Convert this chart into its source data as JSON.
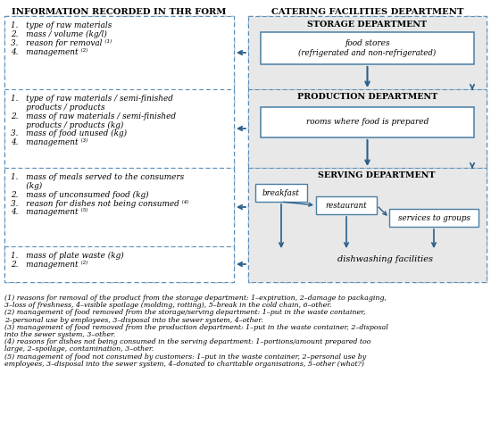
{
  "title_left": "INFORMATION RECORDED IN THR FORM",
  "title_right": "CATERING FACILITIES DEPARTMENT",
  "bg_color": "#ffffff",
  "dash_color": "#5b8db8",
  "solid_color": "#4a7fa5",
  "arrow_color": "#2a5f8a",
  "text_color": "#000000",
  "gray_fill": "#e8e8e8",
  "white_fill": "#ffffff",
  "left_boxes": [
    [
      "1.   type of raw materials",
      "2.   mass / volume (kg/l)",
      "3.   reason for removal ⁽¹⁾",
      "4.   management ⁽²⁾"
    ],
    [
      "1.   type of raw materials / semi-finished",
      "      products / products",
      "2.   mass of raw materials / semi-finished",
      "      products / products (kg)",
      "3.   mass of food unused (kg)",
      "4.   management ⁽³⁾"
    ],
    [
      "1.   mass of meals served to the consumers",
      "      (kg)",
      "2.   mass of unconsumed food (kg)",
      "3.   reason for dishes not being consumed ⁽⁴⁾",
      "4.   management ⁽⁵⁾"
    ],
    [
      "1.   mass of plate waste (kg)",
      "2.   management ⁽²⁾"
    ]
  ],
  "footnotes": [
    "⁽¹⁾ reasons for removal of the product from the storage department: 1–expiration, 2–damage to packaging, 3–loss of freshness, 4–visible spoilage (molding, rotting), 5–break in the cold chain, 6–other.",
    "⁽²⁾ management of food removed from the storage/serving department: 1–put in the waste container, 2–personal use by employees, 3–disposal into the sewer system, 4–other.",
    "⁽³⁾ management of food removed from the production department: 1–put in the waste container, 2–disposal into the sewer system, 3–other.",
    "⁽⁴⁾ reasons for dishes not being consumed in the serving department: 1–portions/amount prepared too large, 2–spoilage, contamination, 3–other.",
    "⁽⁵⁾ management of food not consumed by customers: 1–put in the waste container, 2–personal use by employees, 3–disposal into the sewer system, 4–donated to charitable organisations, 5–other (what?)"
  ]
}
